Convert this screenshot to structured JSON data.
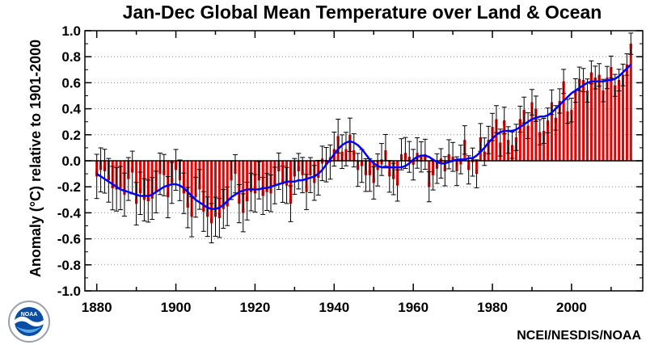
{
  "chart_data": {
    "type": "bar",
    "title": "Jan-Dec Global Mean Temperature over Land & Ocean",
    "ylabel": "Anomaly (°C) relative to 1901-2000",
    "xlabel": "",
    "xlim": [
      1877,
      2018
    ],
    "ylim": [
      -1.0,
      1.0
    ],
    "x_ticks": [
      1880,
      1900,
      1920,
      1940,
      1960,
      1980,
      2000
    ],
    "x_tick_labels": [
      "1880",
      "1900",
      "1920",
      "1940",
      "1960",
      "1980",
      "2000"
    ],
    "y_ticks": [
      -1.0,
      -0.8,
      -0.6,
      -0.4,
      -0.2,
      0.0,
      0.2,
      0.4,
      0.6,
      0.8,
      1.0
    ],
    "y_tick_labels": [
      "-1.0",
      "-0.8",
      "-0.6",
      "-0.4",
      "-0.2",
      "0.0",
      "0.2",
      "0.4",
      "0.6",
      "0.8",
      "1.0"
    ],
    "grid": "horizontal-dotted",
    "colors": {
      "bars": "#ee0000",
      "error_bars": "#000000",
      "smoothed_line": "#0000ff",
      "zero_line": "#000000"
    },
    "years": [
      1880,
      1881,
      1882,
      1883,
      1884,
      1885,
      1886,
      1887,
      1888,
      1889,
      1890,
      1891,
      1892,
      1893,
      1894,
      1895,
      1896,
      1897,
      1898,
      1899,
      1900,
      1901,
      1902,
      1903,
      1904,
      1905,
      1906,
      1907,
      1908,
      1909,
      1910,
      1911,
      1912,
      1913,
      1914,
      1915,
      1916,
      1917,
      1918,
      1919,
      1920,
      1921,
      1922,
      1923,
      1924,
      1925,
      1926,
      1927,
      1928,
      1929,
      1930,
      1931,
      1932,
      1933,
      1934,
      1935,
      1936,
      1937,
      1938,
      1939,
      1940,
      1941,
      1942,
      1943,
      1944,
      1945,
      1946,
      1947,
      1948,
      1949,
      1950,
      1951,
      1952,
      1953,
      1954,
      1955,
      1956,
      1957,
      1958,
      1959,
      1960,
      1961,
      1962,
      1963,
      1964,
      1965,
      1966,
      1967,
      1968,
      1969,
      1970,
      1971,
      1972,
      1973,
      1974,
      1975,
      1976,
      1977,
      1978,
      1979,
      1980,
      1981,
      1982,
      1983,
      1984,
      1985,
      1986,
      1987,
      1988,
      1989,
      1990,
      1991,
      1992,
      1993,
      1994,
      1995,
      1996,
      1997,
      1998,
      1999,
      2000,
      2001,
      2002,
      2003,
      2004,
      2005,
      2006,
      2007,
      2008,
      2009,
      2010,
      2011,
      2012,
      2013,
      2014,
      2015
    ],
    "anomaly": [
      -0.12,
      -0.07,
      -0.08,
      -0.15,
      -0.21,
      -0.22,
      -0.21,
      -0.26,
      -0.14,
      -0.09,
      -0.33,
      -0.25,
      -0.3,
      -0.31,
      -0.29,
      -0.24,
      -0.1,
      -0.11,
      -0.28,
      -0.17,
      -0.07,
      -0.15,
      -0.25,
      -0.36,
      -0.43,
      -0.28,
      -0.22,
      -0.39,
      -0.43,
      -0.48,
      -0.43,
      -0.44,
      -0.37,
      -0.35,
      -0.15,
      -0.1,
      -0.33,
      -0.4,
      -0.31,
      -0.24,
      -0.25,
      -0.15,
      -0.27,
      -0.24,
      -0.25,
      -0.19,
      -0.08,
      -0.18,
      -0.19,
      -0.33,
      -0.12,
      -0.08,
      -0.11,
      -0.24,
      -0.11,
      -0.17,
      -0.13,
      -0.02,
      -0.03,
      -0.01,
      0.09,
      0.19,
      0.07,
      0.09,
      0.2,
      0.08,
      -0.07,
      -0.04,
      -0.11,
      -0.11,
      -0.17,
      -0.07,
      0.01,
      0.08,
      -0.12,
      -0.14,
      -0.19,
      0.05,
      0.06,
      0.03,
      -0.03,
      0.06,
      0.03,
      0.05,
      -0.2,
      -0.11,
      -0.06,
      -0.02,
      -0.08,
      0.05,
      0.03,
      -0.08,
      0.01,
      0.16,
      -0.07,
      -0.01,
      -0.1,
      0.18,
      0.07,
      0.16,
      0.26,
      0.32,
      0.14,
      0.31,
      0.16,
      0.12,
      0.18,
      0.32,
      0.39,
      0.27,
      0.45,
      0.4,
      0.22,
      0.23,
      0.31,
      0.45,
      0.33,
      0.46,
      0.61,
      0.38,
      0.39,
      0.54,
      0.63,
      0.62,
      0.54,
      0.68,
      0.64,
      0.66,
      0.54,
      0.64,
      0.72,
      0.58,
      0.62,
      0.66,
      0.74,
      0.9
    ],
    "smoothed": [
      -0.1,
      -0.12,
      -0.14,
      -0.16,
      -0.18,
      -0.2,
      -0.22,
      -0.23,
      -0.24,
      -0.25,
      -0.26,
      -0.27,
      -0.27,
      -0.27,
      -0.26,
      -0.24,
      -0.22,
      -0.2,
      -0.19,
      -0.18,
      -0.18,
      -0.19,
      -0.21,
      -0.24,
      -0.27,
      -0.3,
      -0.32,
      -0.34,
      -0.36,
      -0.37,
      -0.37,
      -0.36,
      -0.34,
      -0.31,
      -0.28,
      -0.26,
      -0.24,
      -0.23,
      -0.22,
      -0.22,
      -0.22,
      -0.22,
      -0.21,
      -0.21,
      -0.2,
      -0.19,
      -0.18,
      -0.17,
      -0.16,
      -0.16,
      -0.16,
      -0.15,
      -0.15,
      -0.14,
      -0.13,
      -0.12,
      -0.1,
      -0.07,
      -0.03,
      0.01,
      0.05,
      0.09,
      0.12,
      0.14,
      0.15,
      0.14,
      0.12,
      0.09,
      0.05,
      0.01,
      -0.02,
      -0.04,
      -0.05,
      -0.05,
      -0.05,
      -0.05,
      -0.05,
      -0.05,
      -0.04,
      -0.02,
      0.01,
      0.03,
      0.04,
      0.04,
      0.03,
      0.01,
      -0.01,
      -0.02,
      -0.02,
      -0.01,
      0.0,
      0.01,
      0.01,
      0.01,
      0.02,
      0.02,
      0.04,
      0.07,
      0.1,
      0.14,
      0.17,
      0.2,
      0.22,
      0.23,
      0.23,
      0.23,
      0.24,
      0.26,
      0.28,
      0.3,
      0.32,
      0.33,
      0.34,
      0.34,
      0.35,
      0.37,
      0.4,
      0.43,
      0.46,
      0.49,
      0.52,
      0.54,
      0.56,
      0.58,
      0.6,
      0.61,
      0.61,
      0.61,
      0.61,
      0.62,
      0.62,
      0.63,
      0.65,
      0.68,
      0.71,
      0.74
    ],
    "uncertainty": 0.17
  },
  "credit": "NCEI/NESDIS/NOAA",
  "logo": {
    "icon": "noaa-logo",
    "text": "NOAA"
  }
}
